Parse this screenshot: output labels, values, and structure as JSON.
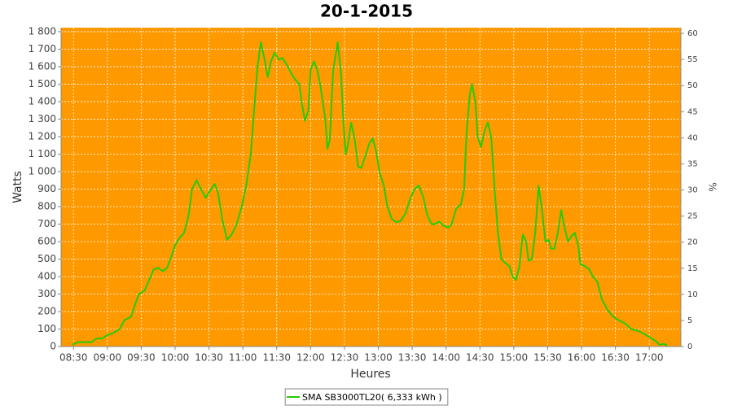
{
  "chart_data": {
    "type": "line",
    "title": "20-1-2015",
    "x_label": "Heures",
    "y_label": "Watts",
    "y2_label": "%",
    "background": "#ff9900",
    "grid": true,
    "legend": "bottom",
    "xlim": [
      "08:19",
      "17:28"
    ],
    "xticks": [
      "08:30",
      "09:00",
      "09:30",
      "10:00",
      "10:30",
      "11:00",
      "11:30",
      "12:00",
      "12:30",
      "13:00",
      "13:30",
      "14:00",
      "14:30",
      "15:00",
      "15:30",
      "16:00",
      "16:30",
      "17:00"
    ],
    "ylim": [
      0,
      1823
    ],
    "yticks": [
      0,
      100,
      200,
      300,
      400,
      500,
      600,
      700,
      800,
      900,
      {
        "value": 1000,
        "label": "1 000"
      },
      {
        "value": 1100,
        "label": "1 100"
      },
      {
        "value": 1200,
        "label": "1 200"
      },
      {
        "value": 1300,
        "label": "1 300"
      },
      {
        "value": 1400,
        "label": "1 400"
      },
      {
        "value": 1500,
        "label": "1 500"
      },
      {
        "value": 1600,
        "label": "1 600"
      },
      {
        "value": 1700,
        "label": "1 700"
      },
      {
        "value": 1800,
        "label": "1 800"
      }
    ],
    "y2lim": [
      0,
      61.1
    ],
    "y2ticks": [
      0,
      5,
      10,
      15,
      20,
      25,
      30,
      35,
      40,
      45,
      50,
      55,
      60
    ],
    "x": [
      "08:29",
      "08:34",
      "08:41",
      "08:46",
      "08:50",
      "08:55",
      "09:00",
      "09:06",
      "09:11",
      "09:15",
      "09:21",
      "09:24",
      "09:28",
      "09:33",
      "09:37",
      "09:41",
      "09:45",
      "09:49",
      "09:53",
      "09:57",
      "10:00",
      "10:04",
      "10:08",
      "10:12",
      "10:15",
      "10:19",
      "10:23",
      "10:27",
      "10:31",
      "10:35",
      "10:38",
      "10:42",
      "10:46",
      "10:50",
      "10:54",
      "10:59",
      "11:03",
      "11:07",
      "11:10",
      "11:13",
      "11:16",
      "11:19",
      "11:22",
      "11:25",
      "11:28",
      "11:32",
      "11:35",
      "11:39",
      "11:43",
      "11:46",
      "11:50",
      "11:52",
      "11:55",
      "11:58",
      "12:00",
      "12:03",
      "12:06",
      "12:09",
      "12:13",
      "12:15",
      "12:17",
      "12:20",
      "12:24",
      "12:27",
      "12:29",
      "12:31",
      "12:33",
      "12:36",
      "12:39",
      "12:42",
      "12:45",
      "12:48",
      "12:52",
      "12:55",
      "12:58",
      "13:01",
      "13:05",
      "13:08",
      "13:12",
      "13:16",
      "13:20",
      "13:24",
      "13:28",
      "13:32",
      "13:36",
      "13:40",
      "13:43",
      "13:47",
      "13:50",
      "13:54",
      "13:58",
      "14:02",
      "14:05",
      "14:09",
      "14:13",
      "14:16",
      "14:18",
      "14:21",
      "14:23",
      "14:26",
      "14:28",
      "14:31",
      "14:34",
      "14:37",
      "14:40",
      "14:43",
      "14:46",
      "14:49",
      "14:52",
      "14:56",
      "14:59",
      "15:02",
      "15:05",
      "15:08",
      "15:11",
      "15:13",
      "15:16",
      "15:19",
      "15:22",
      "15:25",
      "15:28",
      "15:31",
      "15:33",
      "15:36",
      "15:39",
      "15:42",
      "15:45",
      "15:48",
      "15:51",
      "15:54",
      "15:57",
      "15:59",
      "16:03",
      "16:07",
      "16:10",
      "16:14",
      "16:18",
      "16:23",
      "16:28",
      "16:33",
      "16:39",
      "16:44",
      "16:50",
      "16:56",
      "17:01",
      "17:06",
      "17:09",
      "17:13",
      "17:16"
    ],
    "series": [
      {
        "name": "SMA SB3000TL20( 6,333 kWh )",
        "color": "#22cc00",
        "values": [
          10,
          25,
          25,
          25,
          45,
          45,
          65,
          80,
          100,
          150,
          170,
          230,
          300,
          320,
          380,
          440,
          450,
          430,
          450,
          520,
          580,
          620,
          650,
          750,
          900,
          950,
          900,
          850,
          890,
          930,
          880,
          720,
          610,
          640,
          690,
          800,
          920,
          1100,
          1350,
          1600,
          1740,
          1650,
          1540,
          1630,
          1680,
          1640,
          1650,
          1610,
          1560,
          1530,
          1500,
          1400,
          1290,
          1350,
          1580,
          1630,
          1580,
          1480,
          1300,
          1130,
          1180,
          1580,
          1740,
          1560,
          1300,
          1100,
          1150,
          1280,
          1190,
          1030,
          1020,
          1080,
          1160,
          1190,
          1120,
          1000,
          920,
          800,
          730,
          710,
          720,
          760,
          840,
          900,
          920,
          850,
          760,
          700,
          700,
          715,
          690,
          680,
          700,
          790,
          810,
          900,
          1200,
          1440,
          1500,
          1400,
          1200,
          1140,
          1230,
          1280,
          1200,
          900,
          650,
          500,
          480,
          460,
          400,
          380,
          460,
          640,
          600,
          490,
          500,
          650,
          920,
          780,
          600,
          610,
          560,
          560,
          650,
          780,
          680,
          600,
          630,
          650,
          580,
          470,
          460,
          440,
          400,
          370,
          270,
          210,
          170,
          150,
          130,
          100,
          90,
          70,
          50,
          30,
          10,
          15,
          5
        ]
      }
    ]
  }
}
